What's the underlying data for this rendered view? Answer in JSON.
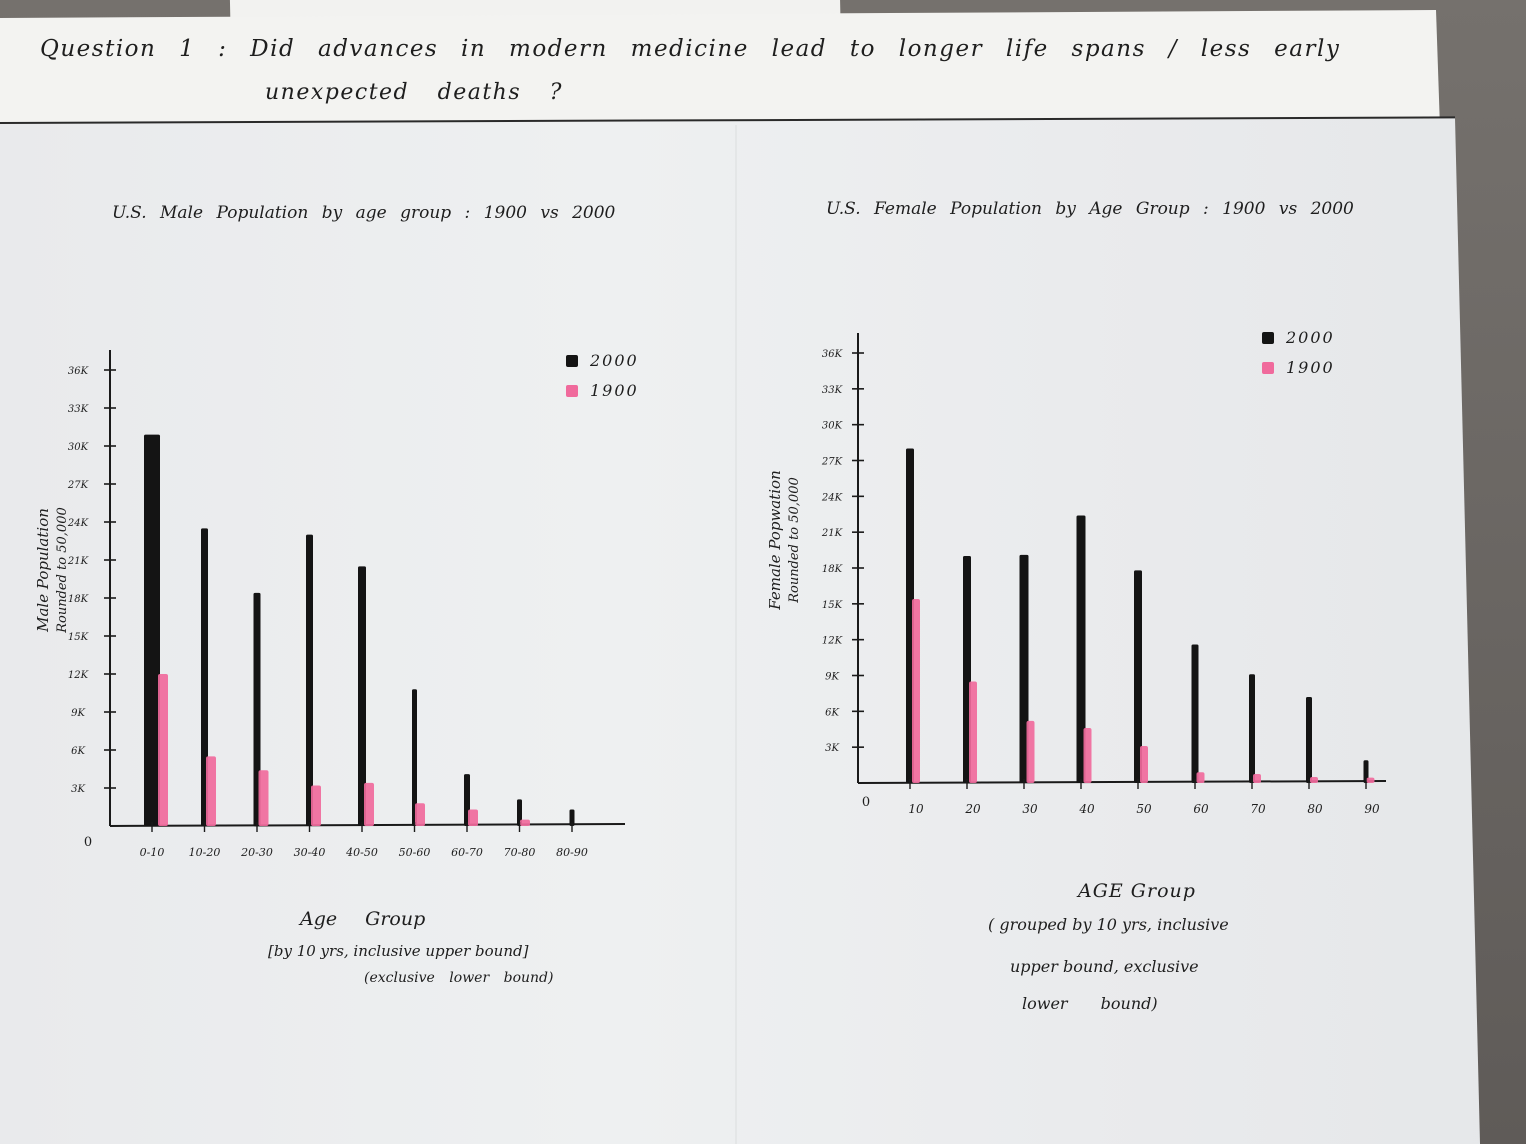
{
  "question": {
    "line1": "Question 1 : Did advances in modern medicine lead to longer life spans / less early",
    "line2": "unexpected deaths ?"
  },
  "chart_data": [
    {
      "type": "bar",
      "title": "U.S. Male Population by age group : 1900 vs 2000",
      "ylabel": "Male Population Rounded to 50,000",
      "xlabel": "Age Group",
      "xlabel_note1": "[by 10 yrs, inclusive upper bound]",
      "xlabel_note2": "(exclusive lower bound)",
      "categories": [
        "0-10",
        "10-20",
        "20-30",
        "30-40",
        "40-50",
        "50-60",
        "60-70",
        "70-80",
        "80-90"
      ],
      "yticks": [
        "3K",
        "6K",
        "9K",
        "12K",
        "15K",
        "18K",
        "21K",
        "24K",
        "27K",
        "30K",
        "33K",
        "36K"
      ],
      "ylim": [
        0,
        36000
      ],
      "series": [
        {
          "name": "2000",
          "color": "#141414",
          "values": [
            30900,
            23500,
            18400,
            23000,
            20500,
            10800,
            4100,
            2100,
            1300
          ]
        },
        {
          "name": "1900",
          "color": "#f06a9c",
          "values": [
            12000,
            5500,
            4400,
            3200,
            3400,
            1800,
            1300,
            500,
            0
          ]
        }
      ],
      "legend": [
        {
          "label": "2000",
          "color": "#141414"
        },
        {
          "label": "1900",
          "color": "#f06a9c"
        }
      ],
      "legend_position": "top-right",
      "origin_label": "0"
    },
    {
      "type": "bar",
      "title": "U.S. Female Population by Age Group : 1900 vs 2000",
      "ylabel": "Female Popwation Rounded to 50,000",
      "xlabel": "AGE Group",
      "xlabel_note1": "( grouped by 10 yrs, inclusive",
      "xlabel_note2": "upper bound, exclusive",
      "xlabel_note3": "lower bound)",
      "categories": [
        "10",
        "20",
        "30",
        "40",
        "50",
        "60",
        "70",
        "80",
        "90"
      ],
      "yticks": [
        "3K",
        "6K",
        "9K",
        "12K",
        "15K",
        "18K",
        "21K",
        "24K",
        "27K",
        "30K",
        "33K",
        "36K"
      ],
      "ylim": [
        0,
        36000
      ],
      "series": [
        {
          "name": "2000",
          "color": "#141414",
          "values": [
            28000,
            19000,
            19100,
            22400,
            17800,
            11600,
            9100,
            7200,
            1900
          ]
        },
        {
          "name": "1900",
          "color": "#f06a9c",
          "values": [
            15400,
            8500,
            5200,
            4600,
            3100,
            900,
            750,
            500,
            450
          ]
        }
      ],
      "legend": [
        {
          "label": "2000",
          "color": "#141414"
        },
        {
          "label": "1900",
          "color": "#f06a9c"
        }
      ],
      "legend_position": "top-right",
      "origin_label": "0"
    }
  ]
}
